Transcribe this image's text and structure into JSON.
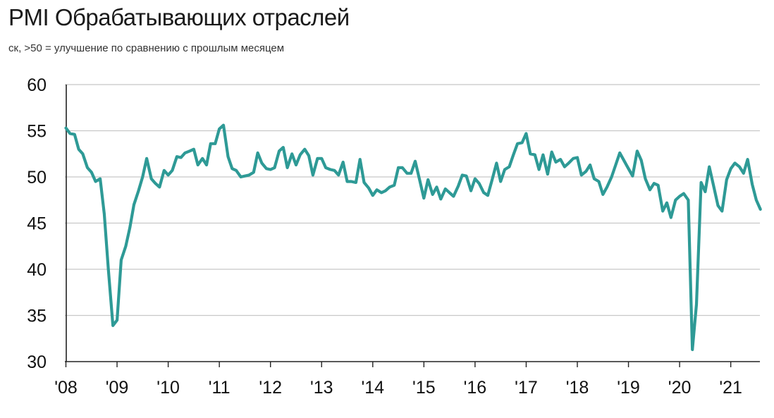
{
  "chart_data": {
    "type": "line",
    "title": "PMI Обрабатывающих отраслей",
    "subtitle": "ск, >50 = улучшение по сравнению с прошлым месяцем",
    "xlabel": "",
    "ylabel": "",
    "ylim": [
      30,
      60
    ],
    "xlim": [
      2008.0,
      2021.667
    ],
    "y_ticks": [
      "60",
      "55",
      "50",
      "45",
      "40",
      "35",
      "30"
    ],
    "x_ticks": [
      "'08",
      "'09",
      "'10",
      "'11",
      "'12",
      "'13",
      "'14",
      "'15",
      "'16",
      "'17",
      "'18",
      "'19",
      "'20",
      "'21"
    ],
    "grid": "horizontal",
    "line_color": "#2e9a96",
    "series": [
      {
        "values": [
          [
            2008.0,
            55.3
          ],
          [
            2008.08,
            54.7
          ],
          [
            2008.17,
            54.6
          ],
          [
            2008.25,
            53.0
          ],
          [
            2008.33,
            52.5
          ],
          [
            2008.42,
            51.0
          ],
          [
            2008.5,
            50.5
          ],
          [
            2008.58,
            49.5
          ],
          [
            2008.67,
            49.8
          ],
          [
            2008.75,
            46.0
          ],
          [
            2008.83,
            40.0
          ],
          [
            2008.92,
            33.9
          ],
          [
            2009.0,
            34.5
          ],
          [
            2009.08,
            41.0
          ],
          [
            2009.17,
            42.5
          ],
          [
            2009.25,
            44.5
          ],
          [
            2009.33,
            47.0
          ],
          [
            2009.42,
            48.5
          ],
          [
            2009.5,
            50.0
          ],
          [
            2009.58,
            52.0
          ],
          [
            2009.67,
            49.8
          ],
          [
            2009.75,
            49.3
          ],
          [
            2009.83,
            48.9
          ],
          [
            2009.92,
            50.7
          ],
          [
            2010.0,
            50.2
          ],
          [
            2010.08,
            50.7
          ],
          [
            2010.17,
            52.2
          ],
          [
            2010.25,
            52.1
          ],
          [
            2010.33,
            52.6
          ],
          [
            2010.42,
            52.8
          ],
          [
            2010.5,
            53.0
          ],
          [
            2010.58,
            51.3
          ],
          [
            2010.67,
            52.0
          ],
          [
            2010.75,
            51.3
          ],
          [
            2010.83,
            53.6
          ],
          [
            2010.92,
            53.6
          ],
          [
            2011.0,
            55.2
          ],
          [
            2011.08,
            55.6
          ],
          [
            2011.17,
            52.2
          ],
          [
            2011.25,
            50.9
          ],
          [
            2011.33,
            50.7
          ],
          [
            2011.42,
            50.0
          ],
          [
            2011.5,
            50.1
          ],
          [
            2011.58,
            50.2
          ],
          [
            2011.67,
            50.5
          ],
          [
            2011.75,
            52.6
          ],
          [
            2011.83,
            51.5
          ],
          [
            2011.92,
            50.9
          ],
          [
            2012.0,
            50.8
          ],
          [
            2012.08,
            51.0
          ],
          [
            2012.17,
            52.8
          ],
          [
            2012.25,
            53.2
          ],
          [
            2012.33,
            51.0
          ],
          [
            2012.42,
            52.5
          ],
          [
            2012.5,
            51.3
          ],
          [
            2012.58,
            52.4
          ],
          [
            2012.67,
            53.0
          ],
          [
            2012.75,
            52.3
          ],
          [
            2012.83,
            50.2
          ],
          [
            2012.92,
            52.0
          ],
          [
            2013.0,
            52.0
          ],
          [
            2013.08,
            51.0
          ],
          [
            2013.17,
            50.8
          ],
          [
            2013.25,
            50.7
          ],
          [
            2013.33,
            50.2
          ],
          [
            2013.42,
            51.6
          ],
          [
            2013.5,
            49.5
          ],
          [
            2013.58,
            49.5
          ],
          [
            2013.67,
            49.4
          ],
          [
            2013.75,
            51.9
          ],
          [
            2013.83,
            49.4
          ],
          [
            2013.92,
            48.8
          ],
          [
            2014.0,
            48.0
          ],
          [
            2014.08,
            48.6
          ],
          [
            2014.17,
            48.3
          ],
          [
            2014.25,
            48.5
          ],
          [
            2014.33,
            48.9
          ],
          [
            2014.42,
            49.1
          ],
          [
            2014.5,
            51.0
          ],
          [
            2014.58,
            51.0
          ],
          [
            2014.67,
            50.4
          ],
          [
            2014.75,
            50.4
          ],
          [
            2014.83,
            51.7
          ],
          [
            2014.92,
            49.6
          ],
          [
            2015.0,
            47.7
          ],
          [
            2015.08,
            49.7
          ],
          [
            2015.17,
            48.1
          ],
          [
            2015.25,
            48.9
          ],
          [
            2015.33,
            47.6
          ],
          [
            2015.42,
            48.7
          ],
          [
            2015.5,
            48.3
          ],
          [
            2015.58,
            47.9
          ],
          [
            2015.67,
            49.0
          ],
          [
            2015.75,
            50.2
          ],
          [
            2015.83,
            50.1
          ],
          [
            2015.92,
            48.5
          ],
          [
            2016.0,
            49.8
          ],
          [
            2016.08,
            49.3
          ],
          [
            2016.17,
            48.3
          ],
          [
            2016.25,
            48.0
          ],
          [
            2016.33,
            49.6
          ],
          [
            2016.42,
            51.5
          ],
          [
            2016.5,
            49.5
          ],
          [
            2016.58,
            50.8
          ],
          [
            2016.67,
            51.1
          ],
          [
            2016.75,
            52.4
          ],
          [
            2016.83,
            53.6
          ],
          [
            2016.92,
            53.7
          ],
          [
            2017.0,
            54.7
          ],
          [
            2017.08,
            52.5
          ],
          [
            2017.17,
            52.4
          ],
          [
            2017.25,
            50.8
          ],
          [
            2017.33,
            52.4
          ],
          [
            2017.42,
            50.3
          ],
          [
            2017.5,
            52.7
          ],
          [
            2017.58,
            51.6
          ],
          [
            2017.67,
            51.9
          ],
          [
            2017.75,
            51.1
          ],
          [
            2017.83,
            51.5
          ],
          [
            2017.92,
            52.0
          ],
          [
            2018.0,
            52.1
          ],
          [
            2018.08,
            50.2
          ],
          [
            2018.17,
            50.6
          ],
          [
            2018.25,
            51.3
          ],
          [
            2018.33,
            49.8
          ],
          [
            2018.42,
            49.5
          ],
          [
            2018.5,
            48.1
          ],
          [
            2018.58,
            48.9
          ],
          [
            2018.67,
            50.0
          ],
          [
            2018.75,
            51.3
          ],
          [
            2018.83,
            52.6
          ],
          [
            2018.92,
            51.7
          ],
          [
            2019.0,
            50.9
          ],
          [
            2019.08,
            50.1
          ],
          [
            2019.17,
            52.8
          ],
          [
            2019.25,
            51.8
          ],
          [
            2019.33,
            49.8
          ],
          [
            2019.42,
            48.6
          ],
          [
            2019.5,
            49.3
          ],
          [
            2019.58,
            49.1
          ],
          [
            2019.67,
            46.3
          ],
          [
            2019.75,
            47.2
          ],
          [
            2019.83,
            45.6
          ],
          [
            2019.92,
            47.5
          ],
          [
            2020.0,
            47.9
          ],
          [
            2020.08,
            48.2
          ],
          [
            2020.17,
            47.5
          ],
          [
            2020.25,
            31.3
          ],
          [
            2020.33,
            36.2
          ],
          [
            2020.42,
            49.4
          ],
          [
            2020.5,
            48.4
          ],
          [
            2020.58,
            51.1
          ],
          [
            2020.67,
            48.9
          ],
          [
            2020.75,
            46.9
          ],
          [
            2020.83,
            46.3
          ],
          [
            2020.92,
            49.7
          ],
          [
            2021.0,
            50.9
          ],
          [
            2021.08,
            51.5
          ],
          [
            2021.17,
            51.1
          ],
          [
            2021.25,
            50.4
          ],
          [
            2021.33,
            51.9
          ],
          [
            2021.42,
            49.2
          ],
          [
            2021.5,
            47.5
          ],
          [
            2021.58,
            46.5
          ]
        ]
      }
    ]
  }
}
